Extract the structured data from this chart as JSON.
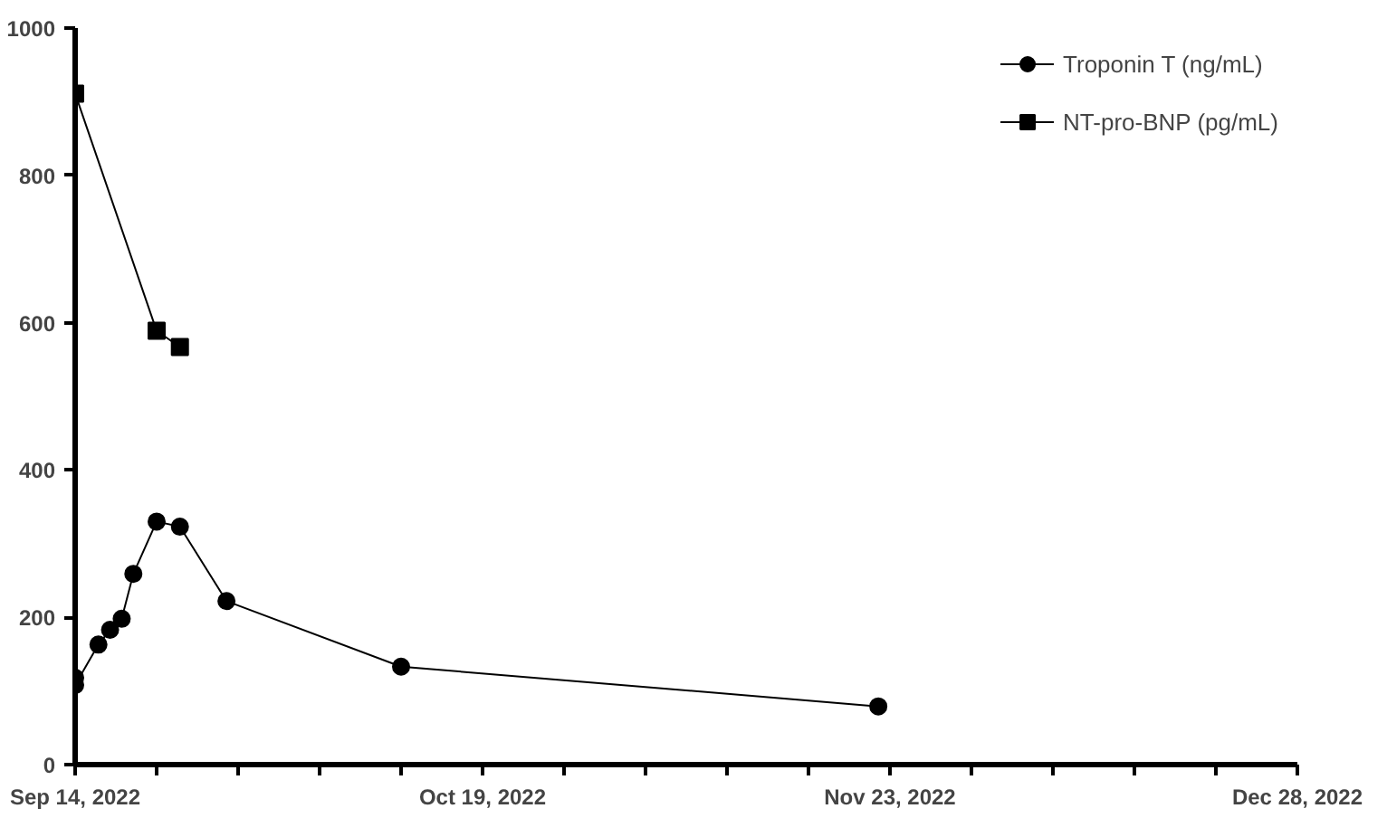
{
  "chart_data": {
    "type": "line",
    "xlim": [
      "2022-09-14",
      "2022-12-28"
    ],
    "ylim": [
      0,
      1000
    ],
    "yticks": [
      0,
      200,
      400,
      600,
      800,
      1000
    ],
    "xticks": [
      {
        "value": "2022-09-14",
        "label": "Sep 14, 2022"
      },
      {
        "value": "2022-09-21",
        "label": null
      },
      {
        "value": "2022-09-28",
        "label": null
      },
      {
        "value": "2022-10-05",
        "label": null
      },
      {
        "value": "2022-10-12",
        "label": null
      },
      {
        "value": "2022-10-19",
        "label": "Oct 19, 2022"
      },
      {
        "value": "2022-10-26",
        "label": null
      },
      {
        "value": "2022-11-02",
        "label": null
      },
      {
        "value": "2022-11-09",
        "label": null
      },
      {
        "value": "2022-11-16",
        "label": null
      },
      {
        "value": "2022-11-23",
        "label": "Nov 23, 2022"
      },
      {
        "value": "2022-11-30",
        "label": null
      },
      {
        "value": "2022-12-07",
        "label": null
      },
      {
        "value": "2022-12-14",
        "label": null
      },
      {
        "value": "2022-12-21",
        "label": null
      },
      {
        "value": "2022-12-28",
        "label": "Dec 28, 2022"
      }
    ],
    "series": [
      {
        "name": "Troponin T (ng/mL)",
        "color": "#000000",
        "marker": "circle",
        "x": [
          "2022-09-14",
          "2022-09-14",
          "2022-09-16",
          "2022-09-17",
          "2022-09-18",
          "2022-09-19",
          "2022-09-21",
          "2022-09-23",
          "2022-09-27",
          "2022-10-12",
          "2022-11-22"
        ],
        "values": [
          118,
          108,
          163,
          183,
          198,
          259,
          330,
          323,
          222,
          133,
          79
        ]
      },
      {
        "name": "NT-pro-BNP (pg/mL)",
        "color": "#000000",
        "marker": "square",
        "x": [
          "2022-09-14",
          "2022-09-21",
          "2022-09-23"
        ],
        "values": [
          911,
          589,
          567
        ]
      }
    ],
    "grid": false,
    "legend": "top right"
  }
}
